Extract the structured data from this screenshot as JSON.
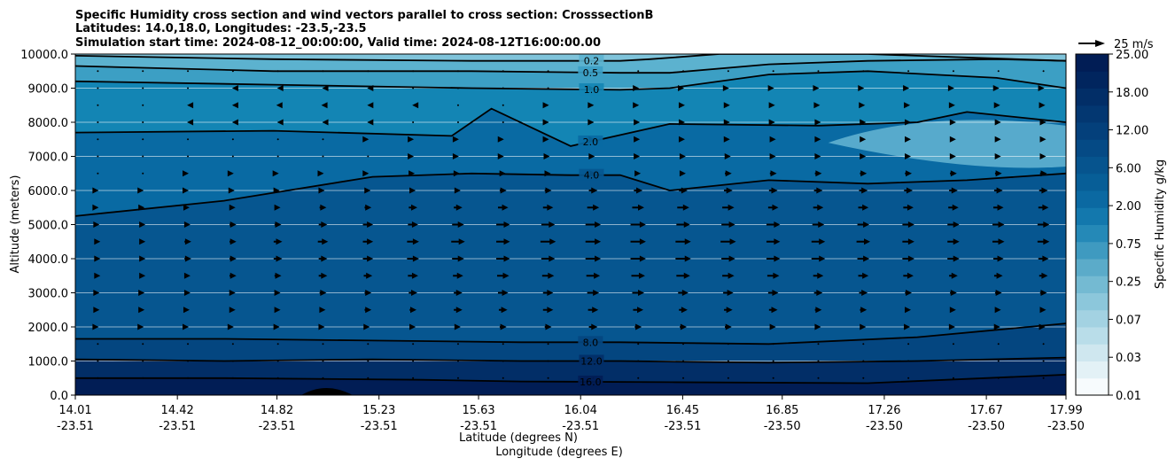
{
  "chart_data": {
    "type": "contour",
    "title_lines": [
      "Specific Humidity cross section and wind vectors parallel to cross section: CrosssectionB",
      "Latitudes: 14.0,18.0, Longitudes: -23.5,-23.5",
      "Simulation start time: 2024-08-12_00:00:00, Valid time: 2024-08-12T16:00:00.00"
    ],
    "ylabel": "Altitude (meters)",
    "xlabel_lines": [
      "Latitude (degrees N)",
      "Longitude (degrees E)"
    ],
    "ylim": [
      0,
      10000
    ],
    "yticks": [
      "0.0",
      "1000.0",
      "2000.0",
      "3000.0",
      "4000.0",
      "5000.0",
      "6000.0",
      "7000.0",
      "8000.0",
      "9000.0",
      "10000.0"
    ],
    "x_range_deg_lat": [
      14.01,
      17.99
    ],
    "xticks": [
      {
        "lat": "14.01",
        "lon": "-23.51"
      },
      {
        "lat": "14.42",
        "lon": "-23.51"
      },
      {
        "lat": "14.82",
        "lon": "-23.51"
      },
      {
        "lat": "15.23",
        "lon": "-23.51"
      },
      {
        "lat": "15.63",
        "lon": "-23.51"
      },
      {
        "lat": "16.04",
        "lon": "-23.51"
      },
      {
        "lat": "16.45",
        "lon": "-23.51"
      },
      {
        "lat": "16.85",
        "lon": "-23.50"
      },
      {
        "lat": "17.26",
        "lon": "-23.50"
      },
      {
        "lat": "17.67",
        "lon": "-23.50"
      },
      {
        "lat": "17.99",
        "lon": "-23.50"
      }
    ],
    "contour_levels": [
      {
        "value": 16.0,
        "label": "16.0",
        "x": [
          0.0,
          0.15,
          0.35,
          0.45,
          0.6,
          0.8,
          1.0
        ],
        "y": [
          500,
          500,
          450,
          400,
          380,
          350,
          600
        ]
      },
      {
        "value": 12.0,
        "label": "12.0",
        "x": [
          0.0,
          0.15,
          0.3,
          0.45,
          0.55,
          0.7,
          0.85,
          1.0
        ],
        "y": [
          1050,
          1000,
          1050,
          1000,
          1000,
          950,
          1000,
          1100
        ]
      },
      {
        "value": 8.0,
        "label": "8.0",
        "x": [
          0.0,
          0.15,
          0.3,
          0.45,
          0.55,
          0.7,
          0.85,
          1.0
        ],
        "y": [
          1650,
          1650,
          1600,
          1550,
          1550,
          1500,
          1700,
          2100
        ]
      },
      {
        "value": 4.0,
        "label": "4.0",
        "x": [
          0.0,
          0.15,
          0.3,
          0.4,
          0.5,
          0.55,
          0.6,
          0.7,
          0.8,
          0.9,
          1.0
        ],
        "y": [
          5250,
          5700,
          6400,
          6500,
          6450,
          6450,
          6000,
          6300,
          6200,
          6300,
          6500
        ]
      },
      {
        "value": 2.0,
        "label": "2.0",
        "x": [
          0.0,
          0.2,
          0.38,
          0.42,
          0.5,
          0.6,
          0.75,
          0.85,
          0.9,
          1.0
        ],
        "y": [
          7700,
          7750,
          7600,
          8400,
          7300,
          7950,
          7900,
          8000,
          8300,
          8000
        ]
      },
      {
        "value": 1.0,
        "label": "1.0",
        "x": [
          0.0,
          0.2,
          0.4,
          0.55,
          0.6,
          0.7,
          0.8,
          0.93,
          1.0
        ],
        "y": [
          9200,
          9100,
          9000,
          8950,
          9000,
          9400,
          9500,
          9300,
          9000
        ]
      },
      {
        "value": 0.5,
        "label": "0.5",
        "x": [
          0.0,
          0.2,
          0.4,
          0.55,
          0.6,
          0.7,
          0.8,
          0.93,
          1.0
        ],
        "y": [
          9650,
          9500,
          9500,
          9450,
          9450,
          9700,
          9800,
          9850,
          9800
        ]
      },
      {
        "value": 0.2,
        "label": "0.2",
        "x": [
          0.0,
          0.2,
          0.4,
          0.55,
          0.58,
          0.65,
          0.8,
          1.0
        ],
        "y": [
          9950,
          9850,
          9800,
          9800,
          9850,
          10000,
          10000,
          9800
        ]
      }
    ],
    "colorbar": {
      "label": "Specific Humidity g/kg",
      "ticks": [
        "0.01",
        "0.03",
        "0.07",
        "0.25",
        "0.75",
        "2.00",
        "6.00",
        "12.00",
        "18.00",
        "25.00"
      ],
      "colors": [
        "#f7fbfd",
        "#e3f1f6",
        "#cfe7ef",
        "#b9dde9",
        "#a3d2e2",
        "#8cc7db",
        "#74bad2",
        "#5babc9",
        "#3f9ac0",
        "#2589b7",
        "#1378ad",
        "#0b69a2",
        "#075e97",
        "#06548e",
        "#054a85",
        "#04407b",
        "#033771",
        "#022e67",
        "#01255e",
        "#011d55"
      ]
    },
    "wind_reference": {
      "label": "25 m/s",
      "value_ms": 25
    },
    "wind_vectors": {
      "columns": 22,
      "levels_m": [
        500,
        1000,
        1500,
        2000,
        2500,
        3000,
        3500,
        4000,
        4500,
        5000,
        5500,
        6000,
        6500,
        7000,
        7500,
        8000,
        8500,
        9000,
        9500
      ],
      "u_ms": [
        [
          0,
          0,
          0,
          0,
          0,
          0,
          0,
          0,
          0,
          0,
          0,
          0,
          0,
          0,
          0,
          0,
          0,
          0,
          0,
          0,
          0,
          0
        ],
        [
          0,
          0,
          0,
          0,
          0,
          0,
          0,
          0,
          0,
          0,
          0,
          0,
          0,
          0,
          0,
          0,
          0,
          0,
          0,
          0,
          0,
          0
        ],
        [
          0,
          0,
          0,
          0,
          0,
          0,
          0,
          0,
          0,
          0,
          0,
          0,
          0,
          0,
          0,
          0,
          0,
          0,
          0,
          0,
          0,
          0
        ],
        [
          1,
          1,
          1,
          1,
          2,
          2,
          2,
          3,
          3,
          4,
          4,
          5,
          4,
          4,
          4,
          3,
          3,
          3,
          2,
          2,
          2,
          2
        ],
        [
          2,
          2,
          2,
          3,
          3,
          3,
          4,
          4,
          5,
          5,
          6,
          6,
          6,
          5,
          5,
          5,
          4,
          4,
          3,
          3,
          3,
          3
        ],
        [
          2,
          2,
          3,
          3,
          3,
          4,
          4,
          5,
          5,
          6,
          6,
          7,
          7,
          6,
          6,
          6,
          5,
          5,
          4,
          4,
          4,
          4
        ],
        [
          3,
          3,
          3,
          4,
          4,
          5,
          5,
          6,
          6,
          7,
          7,
          8,
          8,
          8,
          7,
          7,
          6,
          6,
          6,
          5,
          5,
          5
        ],
        [
          3,
          3,
          4,
          4,
          5,
          5,
          6,
          7,
          7,
          8,
          8,
          9,
          9,
          9,
          8,
          8,
          8,
          7,
          7,
          7,
          6,
          6
        ],
        [
          3,
          3,
          4,
          4,
          5,
          6,
          6,
          7,
          8,
          8,
          9,
          9,
          9,
          9,
          9,
          8,
          8,
          8,
          7,
          7,
          7,
          7
        ],
        [
          2,
          3,
          3,
          4,
          4,
          5,
          6,
          6,
          7,
          8,
          8,
          9,
          9,
          8,
          8,
          8,
          7,
          7,
          7,
          7,
          7,
          7
        ],
        [
          1,
          2,
          2,
          3,
          3,
          4,
          4,
          5,
          5,
          6,
          6,
          7,
          7,
          7,
          7,
          6,
          6,
          6,
          6,
          6,
          6,
          6
        ],
        [
          1,
          1,
          1,
          2,
          2,
          2,
          3,
          3,
          3,
          4,
          4,
          5,
          5,
          5,
          5,
          5,
          5,
          5,
          5,
          5,
          5,
          5
        ],
        [
          0,
          0,
          1,
          1,
          1,
          1,
          1,
          2,
          2,
          3,
          3,
          3,
          3,
          3,
          4,
          4,
          4,
          4,
          4,
          4,
          4,
          4
        ],
        [
          0,
          0,
          0,
          0,
          0,
          0,
          0,
          1,
          1,
          1,
          2,
          2,
          2,
          3,
          3,
          3,
          3,
          3,
          3,
          3,
          3,
          3
        ],
        [
          0,
          0,
          0,
          0,
          0,
          0,
          1,
          1,
          1,
          1,
          1,
          2,
          2,
          2,
          2,
          3,
          3,
          3,
          3,
          3,
          3,
          3
        ],
        [
          0,
          0,
          -1,
          -1,
          -1,
          -1,
          -1,
          0,
          0,
          0,
          1,
          1,
          2,
          2,
          2,
          2,
          3,
          3,
          3,
          3,
          3,
          3
        ],
        [
          0,
          0,
          -1,
          -1,
          -2,
          -2,
          -1,
          -1,
          0,
          0,
          1,
          1,
          1,
          2,
          2,
          2,
          2,
          2,
          2,
          2,
          2,
          2
        ],
        [
          0,
          0,
          0,
          -1,
          -1,
          -1,
          -1,
          0,
          0,
          0,
          0,
          1,
          1,
          1,
          1,
          1,
          1,
          1,
          1,
          1,
          1,
          1
        ],
        [
          0,
          0,
          0,
          0,
          0,
          0,
          0,
          0,
          0,
          0,
          0,
          0,
          0,
          0,
          0,
          0,
          0,
          0,
          0,
          0,
          0,
          0
        ]
      ]
    }
  }
}
